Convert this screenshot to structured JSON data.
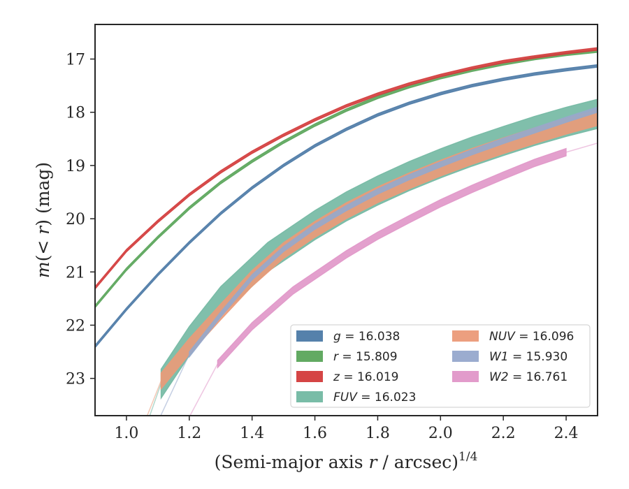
{
  "chart_data": {
    "type": "area",
    "xlabel": "(Semi-major axis r / arcsec)^{1/4}",
    "ylabel": "m(< r) (mag)",
    "xlim": [
      0.9,
      2.5
    ],
    "ylim": [
      23.7,
      16.35
    ],
    "y_inverted": true,
    "xticks": [
      "1.0",
      "1.2",
      "1.4",
      "1.6",
      "1.8",
      "2.0",
      "2.2",
      "2.4"
    ],
    "yticks": [
      "17",
      "18",
      "19",
      "20",
      "21",
      "22",
      "23"
    ],
    "legend": {
      "placement": "lower-right",
      "columns": 2
    },
    "series": [
      {
        "name": "g",
        "label": "g = 16.038",
        "color": "#4c7aa6",
        "x": [
          0.9,
          1.0,
          1.1,
          1.2,
          1.3,
          1.4,
          1.5,
          1.6,
          1.7,
          1.8,
          1.9,
          2.0,
          2.1,
          2.2,
          2.3,
          2.4,
          2.5
        ],
        "y": [
          22.4,
          21.7,
          21.05,
          20.45,
          19.9,
          19.42,
          19.0,
          18.63,
          18.32,
          18.05,
          17.83,
          17.65,
          17.5,
          17.38,
          17.28,
          17.2,
          17.13
        ],
        "band": 0.05
      },
      {
        "name": "r",
        "label": "r = 15.809",
        "color": "#5aa55a",
        "x": [
          0.9,
          1.0,
          1.1,
          1.2,
          1.3,
          1.4,
          1.5,
          1.6,
          1.7,
          1.8,
          1.9,
          2.0,
          2.1,
          2.2,
          2.3,
          2.4,
          2.5
        ],
        "y": [
          21.65,
          20.95,
          20.35,
          19.8,
          19.32,
          18.92,
          18.56,
          18.24,
          17.96,
          17.72,
          17.52,
          17.35,
          17.21,
          17.09,
          16.99,
          16.91,
          16.85
        ],
        "band": 0.05
      },
      {
        "name": "z",
        "label": "z = 16.019",
        "color": "#d33b3b",
        "x": [
          0.9,
          1.0,
          1.1,
          1.2,
          1.3,
          1.4,
          1.5,
          1.6,
          1.7,
          1.8,
          1.9,
          2.0,
          2.1,
          2.2,
          2.3,
          2.4,
          2.5
        ],
        "y": [
          21.3,
          20.6,
          20.05,
          19.55,
          19.12,
          18.75,
          18.43,
          18.14,
          17.88,
          17.66,
          17.47,
          17.31,
          17.17,
          17.05,
          16.96,
          16.88,
          16.81
        ],
        "band": 0.05
      },
      {
        "name": "FUV",
        "label": "FUV = 16.023",
        "color": "#72b8a2",
        "x": [
          1.11,
          1.2,
          1.3,
          1.45,
          1.6,
          1.7,
          1.8,
          1.9,
          2.0,
          2.1,
          2.2,
          2.3,
          2.4,
          2.5
        ],
        "y": [
          23.1,
          22.3,
          21.55,
          20.72,
          20.12,
          19.77,
          19.47,
          19.2,
          18.96,
          18.74,
          18.54,
          18.35,
          18.18,
          18.03
        ],
        "band": 0.55
      },
      {
        "name": "NUV",
        "label": "NUV = 16.096",
        "color": "#eb9a78",
        "x": [
          1.11,
          1.2,
          1.3,
          1.4,
          1.5,
          1.6,
          1.7,
          1.8,
          1.9,
          2.0,
          2.1,
          2.2,
          2.3,
          2.4,
          2.5
        ],
        "y": [
          23.05,
          22.4,
          21.75,
          21.12,
          20.6,
          20.2,
          19.85,
          19.55,
          19.29,
          19.05,
          18.83,
          18.63,
          18.44,
          18.26,
          18.1
        ],
        "band": 0.3
      },
      {
        "name": "W1",
        "label": "W1 = 15.930",
        "color": "#96a8cc",
        "x": [
          1.2,
          1.3,
          1.4,
          1.5,
          1.6,
          1.7,
          1.8,
          1.9,
          2.0,
          2.1,
          2.2,
          2.3,
          2.4,
          2.5
        ],
        "y": [
          22.55,
          21.8,
          21.1,
          20.57,
          20.15,
          19.8,
          19.49,
          19.22,
          18.98,
          18.75,
          18.54,
          18.34,
          18.14,
          17.95
        ],
        "band": 0.1
      },
      {
        "name": "W2",
        "label": "W2 = 16.761",
        "color": "#e096c8",
        "x": [
          1.29,
          1.4,
          1.53,
          1.7,
          1.8,
          1.9,
          2.0,
          2.1,
          2.2,
          2.3,
          2.4
        ],
        "y": [
          22.73,
          22.02,
          21.35,
          20.67,
          20.32,
          20.01,
          19.71,
          19.44,
          19.19,
          18.95,
          18.75
        ],
        "band": 0.14
      }
    ]
  }
}
